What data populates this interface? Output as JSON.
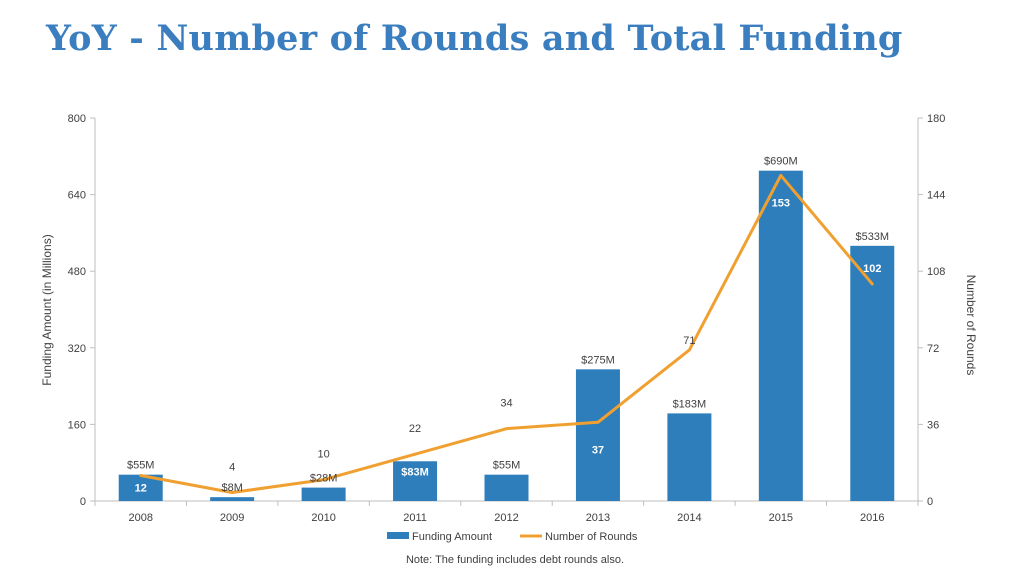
{
  "title": "YoY - Number of Rounds and Total Funding",
  "note": "Note: The funding includes debt rounds also.",
  "colors": {
    "bar": "#2e7ebc",
    "line": "#f0a030",
    "title": "#3a7ebf"
  },
  "chart_data": {
    "type": "bar",
    "categories": [
      "2008",
      "2009",
      "2010",
      "2011",
      "2012",
      "2013",
      "2014",
      "2015",
      "2016"
    ],
    "series": [
      {
        "name": "Funding Amount",
        "type": "bar",
        "axis": "left",
        "values": [
          55,
          8,
          28,
          83,
          55,
          275,
          183,
          690,
          533
        ],
        "labels": [
          "$55M",
          "$8M",
          "$28M",
          "$83M",
          "$55M",
          "$275M",
          "$183M",
          "$690M",
          "$533M"
        ]
      },
      {
        "name": "Number of Rounds",
        "type": "line",
        "axis": "right",
        "values": [
          12,
          4,
          10,
          22,
          34,
          37,
          71,
          153,
          102
        ],
        "labels": [
          "12",
          "4",
          "10",
          "22",
          "34",
          "37",
          "71",
          "153",
          "102"
        ]
      }
    ],
    "ylabel": "Funding Amount (in Millions)",
    "y2label": "Number of Rounds",
    "ylim": [
      0,
      800
    ],
    "y2lim": [
      0,
      180
    ],
    "yticks": [
      "0",
      "160",
      "320",
      "480",
      "640",
      "800"
    ],
    "y2ticks": [
      "0",
      "36",
      "72",
      "108",
      "144",
      "180"
    ],
    "grid": false,
    "legend": "bottom"
  }
}
